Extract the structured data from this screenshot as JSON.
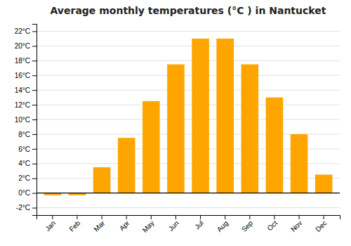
{
  "chart_data": {
    "type": "bar",
    "title": "Average monthly temperatures (°C ) in Nantucket",
    "categories": [
      "Jan",
      "Feb",
      "Mar",
      "Apr",
      "May",
      "Jun",
      "Jul",
      "Aug",
      "Sep",
      "Oct",
      "Nov",
      "Dec"
    ],
    "values": [
      -0.3,
      -0.3,
      3.5,
      7.5,
      12.5,
      17.5,
      21.0,
      21.0,
      17.5,
      13.0,
      8.0,
      2.5
    ],
    "color": "#FFA500",
    "ylim": [
      -3,
      23
    ],
    "yticks": [
      {
        "value": -2,
        "label": "-2°C"
      },
      {
        "value": 0,
        "label": "0°C"
      },
      {
        "value": 2,
        "label": "2°C"
      },
      {
        "value": 4,
        "label": "4°C"
      },
      {
        "value": 6,
        "label": "6°C"
      },
      {
        "value": 8,
        "label": "8°C"
      },
      {
        "value": 10,
        "label": "10°C"
      },
      {
        "value": 12,
        "label": "12°C"
      },
      {
        "value": 14,
        "label": "14°C"
      },
      {
        "value": 16,
        "label": "16°C"
      },
      {
        "value": 18,
        "label": "18°C"
      },
      {
        "value": 20,
        "label": "20°C"
      },
      {
        "value": 22,
        "label": "22°C"
      }
    ],
    "grid": true
  }
}
